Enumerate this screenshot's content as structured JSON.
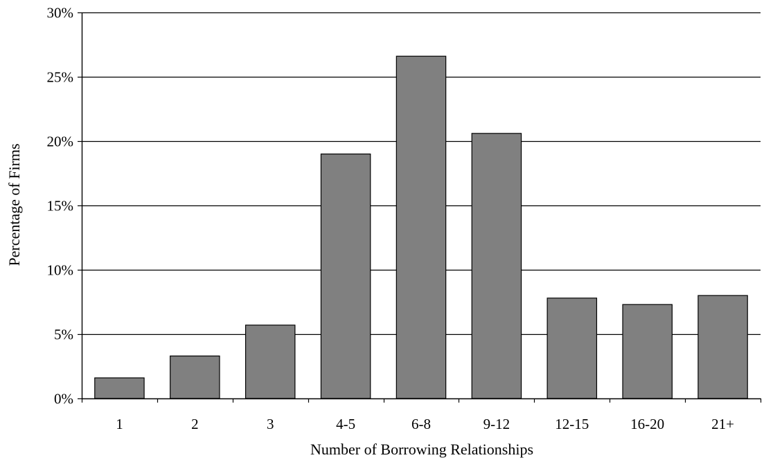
{
  "chart_data": {
    "type": "bar",
    "title": "",
    "xlabel": "Number of Borrowing Relationships",
    "ylabel": "Percentage of Firms",
    "categories": [
      "1",
      "2",
      "3",
      "4-5",
      "6-8",
      "9-12",
      "12-15",
      "16-20",
      "21+"
    ],
    "series": [
      {
        "values": [
          1.6,
          3.3,
          5.7,
          19.0,
          26.6,
          20.6,
          7.8,
          7.3,
          8.0
        ]
      }
    ],
    "ylim": [
      0,
      30
    ],
    "yticks": [
      0,
      5,
      10,
      15,
      20,
      25,
      30
    ],
    "ytick_labels": [
      "0%",
      "5%",
      "10%",
      "15%",
      "20%",
      "25%",
      "30%"
    ],
    "grid": "horizontal",
    "legend": "none",
    "colors": {
      "bar_fill": "#808080",
      "bar_stroke": "#000000",
      "grid": "#000000"
    }
  }
}
